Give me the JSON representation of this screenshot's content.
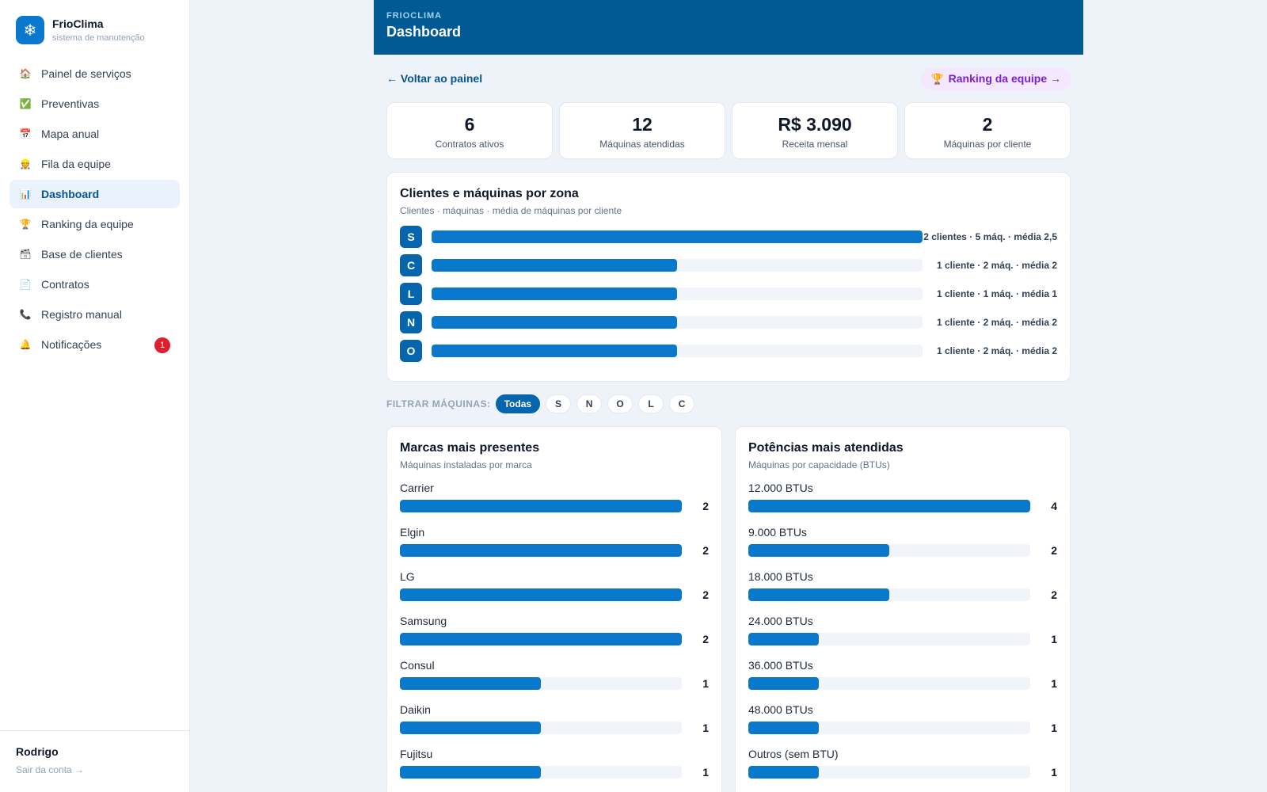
{
  "sidebar": {
    "brand_name": "FrioClima",
    "brand_sub": "sistema de manutenção",
    "items": [
      {
        "label": "Painel de serviços",
        "icon": "🏠",
        "active": false
      },
      {
        "label": "Preventivas",
        "icon": "✅",
        "active": false
      },
      {
        "label": "Mapa anual",
        "icon": "📅",
        "active": false
      },
      {
        "label": "Fila da equipe",
        "icon": "👷",
        "active": false
      },
      {
        "label": "Dashboard",
        "icon": "📊",
        "active": true
      },
      {
        "label": "Ranking da equipe",
        "icon": "🏆",
        "active": false
      },
      {
        "label": "Base de clientes",
        "icon": "🗃",
        "active": false
      },
      {
        "label": "Contratos",
        "icon": "📄",
        "active": false
      },
      {
        "label": "Registro manual",
        "icon": "📞",
        "active": false
      },
      {
        "label": "Notificações",
        "icon": "🔔",
        "active": false,
        "badge": "1"
      }
    ],
    "user_name": "Rodrigo",
    "logout_label": "Sair da conta →"
  },
  "header": {
    "kicker": "FRIOCLIMA",
    "title": "Dashboard"
  },
  "links": {
    "back": "← Voltar ao painel",
    "ranking_icon": "🏆",
    "ranking": "Ranking da equipe →"
  },
  "stats": [
    {
      "value": "6",
      "label": "Contratos ativos"
    },
    {
      "value": "12",
      "label": "Máquinas atendidas"
    },
    {
      "value": "R$ 3.090",
      "label": "Receita mensal"
    },
    {
      "value": "2",
      "label": "Máquinas por cliente"
    }
  ],
  "zones": {
    "title": "Clientes e máquinas por zona",
    "subtitle": "Clientes · máquinas · média de máquinas por cliente",
    "rows": [
      {
        "zone": "S",
        "clients": 2,
        "text": "2 clientes · 5 máq. · média 2,5"
      },
      {
        "zone": "C",
        "clients": 1,
        "text": "1 cliente · 2 máq. · média 2"
      },
      {
        "zone": "L",
        "clients": 1,
        "text": "1 cliente · 1 máq. · média 1"
      },
      {
        "zone": "N",
        "clients": 1,
        "text": "1 cliente · 2 máq. · média 2"
      },
      {
        "zone": "O",
        "clients": 1,
        "text": "1 cliente · 2 máq. · média 2"
      }
    ],
    "max": 2
  },
  "filter": {
    "label": "FILTRAR MÁQUINAS:",
    "options": [
      "Todas",
      "S",
      "N",
      "O",
      "L",
      "C"
    ],
    "selected": "Todas"
  },
  "brands": {
    "title": "Marcas mais presentes",
    "subtitle": "Máquinas instaladas por marca",
    "max": 2,
    "rows": [
      {
        "label": "Carrier",
        "value": 2
      },
      {
        "label": "Elgin",
        "value": 2
      },
      {
        "label": "LG",
        "value": 2
      },
      {
        "label": "Samsung",
        "value": 2
      },
      {
        "label": "Consul",
        "value": 1
      },
      {
        "label": "Daikin",
        "value": 1
      },
      {
        "label": "Fujitsu",
        "value": 1
      }
    ]
  },
  "powers": {
    "title": "Potências mais atendidas",
    "subtitle": "Máquinas por capacidade (BTUs)",
    "max": 4,
    "rows": [
      {
        "label": "12.000 BTUs",
        "value": 4
      },
      {
        "label": "9.000 BTUs",
        "value": 2
      },
      {
        "label": "18.000 BTUs",
        "value": 2
      },
      {
        "label": "24.000 BTUs",
        "value": 1
      },
      {
        "label": "36.000 BTUs",
        "value": 1
      },
      {
        "label": "48.000 BTUs",
        "value": 1
      },
      {
        "label": "Outros (sem BTU)",
        "value": 1
      }
    ]
  }
}
